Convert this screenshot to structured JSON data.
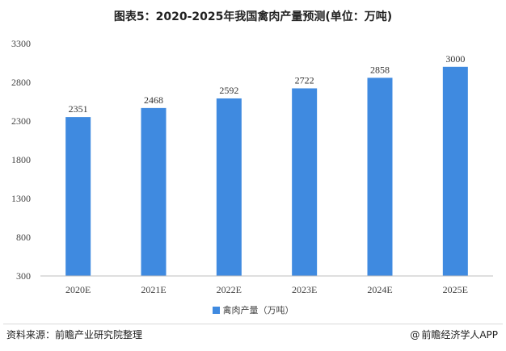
{
  "chart_data": {
    "type": "bar",
    "title": "图表5：2020-2025年我国禽肉产量预测(单位：万吨)",
    "categories": [
      "2020E",
      "2021E",
      "2022E",
      "2023E",
      "2024E",
      "2025E"
    ],
    "series": [
      {
        "name": "禽肉产量（万吨）",
        "values": [
          2351,
          2468,
          2592,
          2722,
          2858,
          3000
        ]
      }
    ],
    "yticks": [
      300,
      800,
      1300,
      1800,
      2300,
      2800,
      3300
    ],
    "ylim": [
      300,
      3300
    ],
    "xlabel": "",
    "ylabel": "",
    "grid": false,
    "legend_position": "bottom-center",
    "bar_color": "#3F8AE0"
  },
  "legend": {
    "label": "禽肉产量（万吨）"
  },
  "footer": {
    "source": "资料来源：前瞻产业研究院整理",
    "brand": "前瞻经济学人APP",
    "brand_icon": "@"
  },
  "colors": {
    "bar": "#3F8AE0",
    "axis": "#bfbfbf",
    "text": "#333333"
  }
}
